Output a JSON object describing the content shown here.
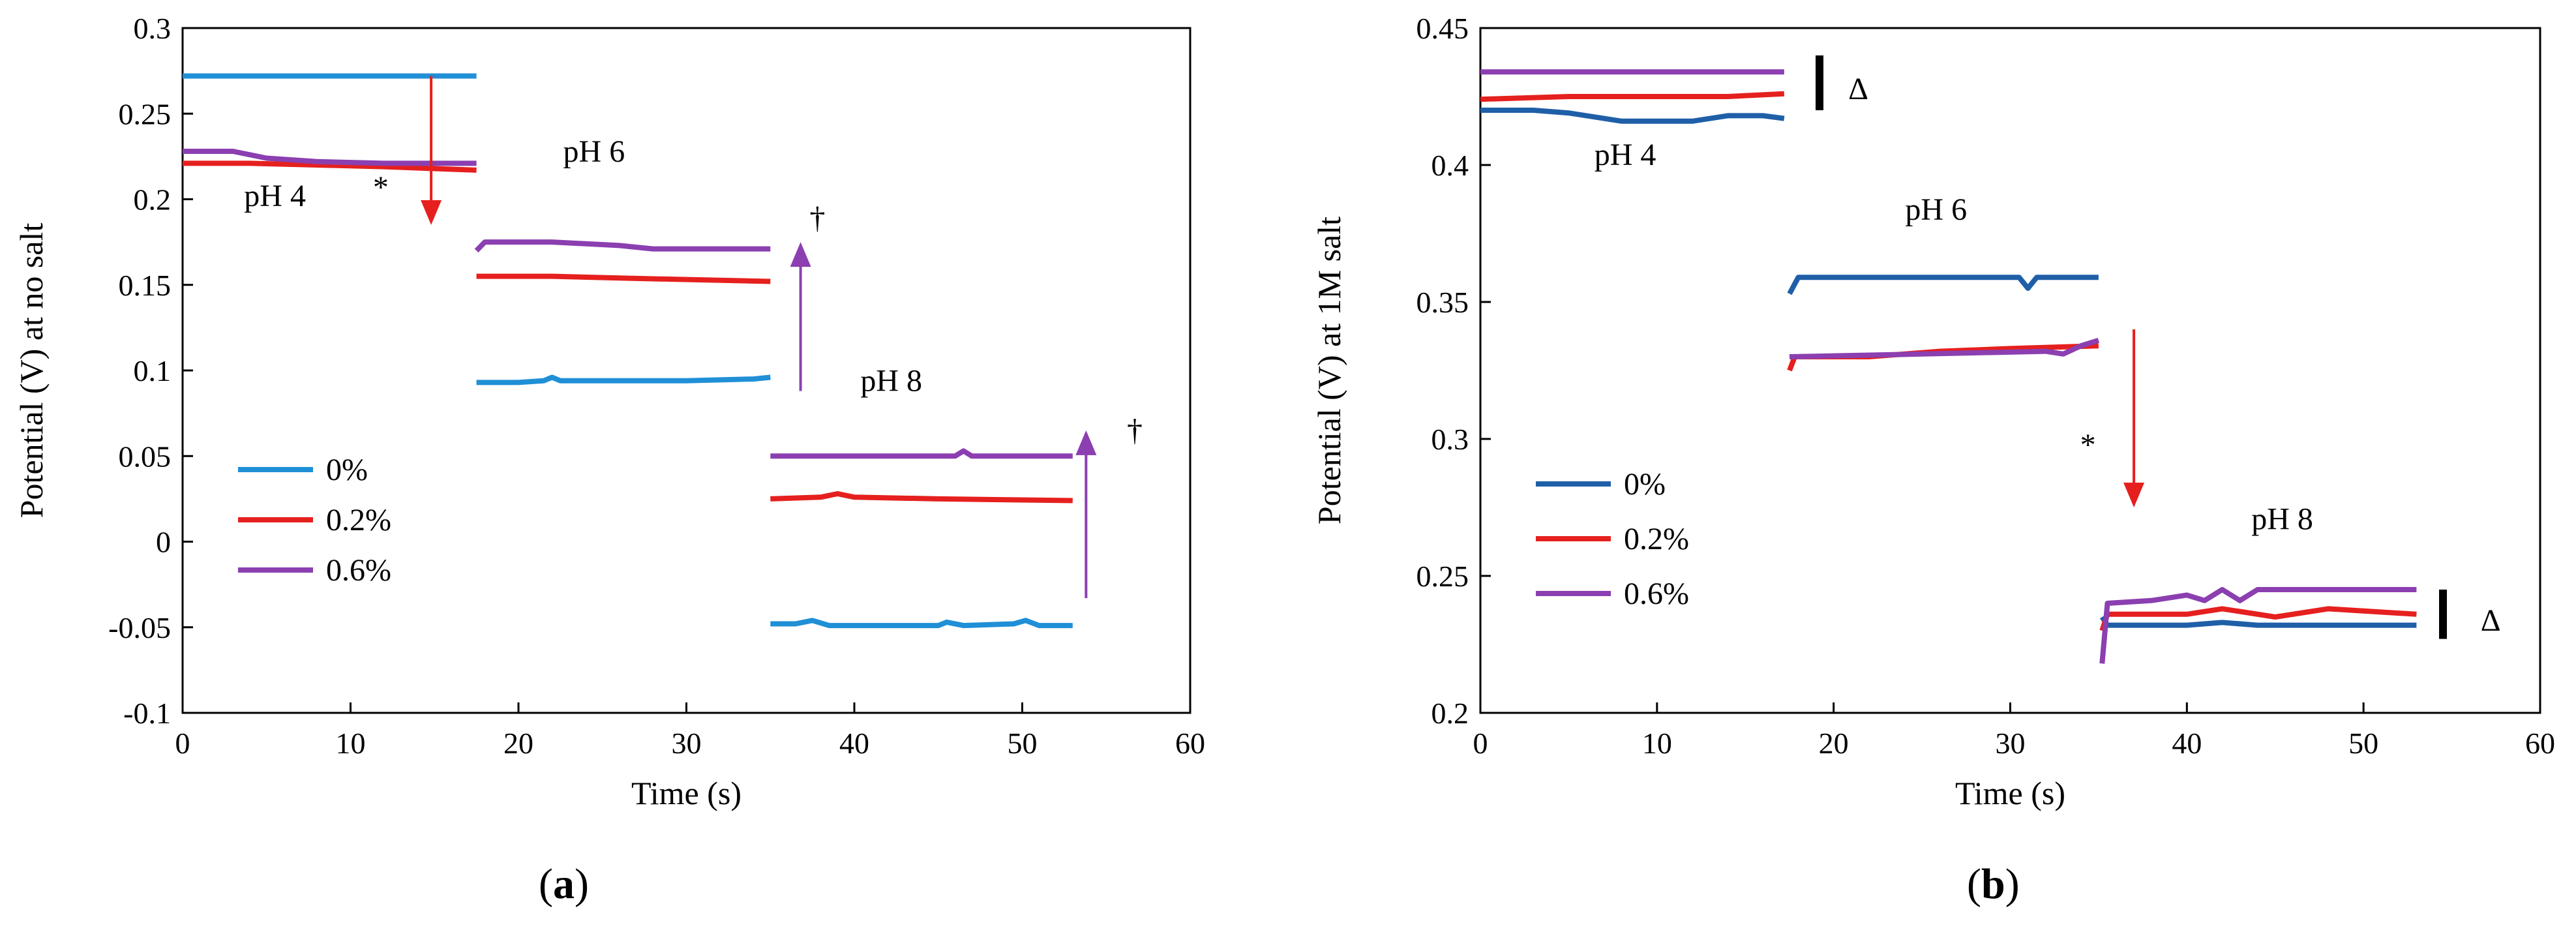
{
  "figure": {
    "panel_a_label": "a",
    "panel_b_label": "b"
  },
  "chart_data": [
    {
      "type": "line",
      "panel": "a",
      "xlabel": "Time (s)",
      "ylabel": "Potential (V) at no salt",
      "xlim": [
        0,
        60
      ],
      "ylim": [
        -0.1,
        0.3
      ],
      "xticks": [
        0,
        10,
        20,
        30,
        40,
        50,
        60
      ],
      "yticks": [
        -0.1,
        -0.05,
        0,
        0.05,
        0.1,
        0.15,
        0.2,
        0.25,
        0.3
      ],
      "ytick_labels": [
        "-0.1",
        "-0.05",
        "0",
        "0.05",
        "0.1",
        "0.15",
        "0.2",
        "0.25",
        "0.3"
      ],
      "legend_position": "lower-left",
      "series": [
        {
          "name": "0%",
          "color": "#1f8fd6",
          "segments": [
            [
              [
                0,
                0.272
              ],
              [
                17.5,
                0.272
              ]
            ],
            [
              [
                17.5,
                0.093
              ],
              [
                20,
                0.093
              ],
              [
                21.5,
                0.094
              ],
              [
                22,
                0.096
              ],
              [
                22.5,
                0.094
              ],
              [
                30,
                0.094
              ],
              [
                34,
                0.095
              ],
              [
                35,
                0.096
              ]
            ],
            [
              [
                35,
                -0.048
              ],
              [
                36.5,
                -0.048
              ],
              [
                37.5,
                -0.046
              ],
              [
                38.5,
                -0.049
              ],
              [
                45,
                -0.049
              ],
              [
                45.5,
                -0.047
              ],
              [
                46.5,
                -0.049
              ],
              [
                49.5,
                -0.048
              ],
              [
                50.2,
                -0.046
              ],
              [
                51,
                -0.049
              ],
              [
                53,
                -0.049
              ]
            ]
          ]
        },
        {
          "name": "0.2%",
          "color": "#e5201e",
          "segments": [
            [
              [
                0,
                0.221
              ],
              [
                4,
                0.221
              ],
              [
                8,
                0.22
              ],
              [
                12,
                0.219
              ],
              [
                17.5,
                0.217
              ]
            ],
            [
              [
                17.5,
                0.155
              ],
              [
                22,
                0.155
              ],
              [
                26,
                0.154
              ],
              [
                35,
                0.152
              ]
            ],
            [
              [
                35,
                0.025
              ],
              [
                38,
                0.026
              ],
              [
                39,
                0.028
              ],
              [
                40,
                0.026
              ],
              [
                45,
                0.025
              ],
              [
                53,
                0.024
              ]
            ]
          ]
        },
        {
          "name": "0.6%",
          "color": "#8b3fb0",
          "segments": [
            [
              [
                0,
                0.228
              ],
              [
                3,
                0.228
              ],
              [
                5,
                0.224
              ],
              [
                8,
                0.222
              ],
              [
                12,
                0.221
              ],
              [
                17.5,
                0.221
              ]
            ],
            [
              [
                17.5,
                0.17
              ],
              [
                18,
                0.175
              ],
              [
                22,
                0.175
              ],
              [
                26,
                0.173
              ],
              [
                28,
                0.171
              ],
              [
                35,
                0.171
              ]
            ],
            [
              [
                35,
                0.05
              ],
              [
                40,
                0.05
              ],
              [
                46,
                0.05
              ],
              [
                46.5,
                0.053
              ],
              [
                47,
                0.05
              ],
              [
                53,
                0.05
              ]
            ]
          ]
        }
      ],
      "annotations": [
        {
          "text": "pH 4",
          "x": 5.5,
          "y": 0.196
        },
        {
          "text": "*",
          "x": 11.8,
          "y": 0.201
        },
        {
          "text": "pH 6",
          "x": 24.5,
          "y": 0.222
        },
        {
          "text": "pH 8",
          "x": 42.2,
          "y": 0.088
        },
        {
          "text": "†",
          "x": 37.8,
          "y": 0.183
        },
        {
          "text": "†",
          "x": 56.7,
          "y": 0.059
        }
      ],
      "arrows": [
        {
          "color": "#e5201e",
          "x": 14.8,
          "y_from": 0.272,
          "y_to": 0.185
        },
        {
          "color": "#8b3fb0",
          "x": 36.8,
          "y_from": 0.088,
          "y_to": 0.175
        },
        {
          "color": "#8b3fb0",
          "x": 53.8,
          "y_from": -0.033,
          "y_to": 0.065
        }
      ]
    },
    {
      "type": "line",
      "panel": "b",
      "xlabel": "Time (s)",
      "ylabel": "Potential (V) at 1M salt",
      "xlim": [
        0,
        60
      ],
      "ylim": [
        0.2,
        0.45
      ],
      "xticks": [
        0,
        10,
        20,
        30,
        40,
        50,
        60
      ],
      "yticks": [
        0.2,
        0.25,
        0.3,
        0.35,
        0.4,
        0.45
      ],
      "ytick_labels": [
        "0.2",
        "0.25",
        "0.3",
        "0.35",
        "0.4",
        "0.45"
      ],
      "legend_position": "lower-left",
      "series": [
        {
          "name": "0%",
          "color": "#1f5fa8",
          "segments": [
            [
              [
                0,
                0.42
              ],
              [
                3,
                0.42
              ],
              [
                5,
                0.419
              ],
              [
                8,
                0.416
              ],
              [
                12,
                0.416
              ],
              [
                14,
                0.418
              ],
              [
                16,
                0.418
              ],
              [
                17.2,
                0.417
              ]
            ],
            [
              [
                17.5,
                0.353
              ],
              [
                18,
                0.359
              ],
              [
                30.5,
                0.359
              ],
              [
                31,
                0.355
              ],
              [
                31.5,
                0.359
              ],
              [
                35,
                0.359
              ]
            ],
            [
              [
                35.2,
                0.235
              ],
              [
                35.5,
                0.232
              ],
              [
                40,
                0.232
              ],
              [
                42,
                0.233
              ],
              [
                44,
                0.232
              ],
              [
                53,
                0.232
              ]
            ]
          ]
        },
        {
          "name": "0.2%",
          "color": "#e5201e",
          "segments": [
            [
              [
                0,
                0.424
              ],
              [
                5,
                0.425
              ],
              [
                10,
                0.425
              ],
              [
                14,
                0.425
              ],
              [
                17.2,
                0.426
              ]
            ],
            [
              [
                17.5,
                0.325
              ],
              [
                17.8,
                0.33
              ],
              [
                22,
                0.33
              ],
              [
                26,
                0.332
              ],
              [
                30,
                0.333
              ],
              [
                35,
                0.334
              ]
            ],
            [
              [
                35.2,
                0.23
              ],
              [
                35.5,
                0.236
              ],
              [
                40,
                0.236
              ],
              [
                42,
                0.238
              ],
              [
                45,
                0.235
              ],
              [
                48,
                0.238
              ],
              [
                53,
                0.236
              ]
            ]
          ]
        },
        {
          "name": "0.6%",
          "color": "#8b3fb0",
          "segments": [
            [
              [
                0,
                0.434
              ],
              [
                17.2,
                0.434
              ]
            ],
            [
              [
                17.5,
                0.33
              ],
              [
                25,
                0.331
              ],
              [
                32,
                0.332
              ],
              [
                33,
                0.331
              ],
              [
                34,
                0.334
              ],
              [
                35,
                0.336
              ]
            ],
            [
              [
                35.2,
                0.218
              ],
              [
                35.5,
                0.24
              ],
              [
                38,
                0.241
              ],
              [
                40,
                0.243
              ],
              [
                41,
                0.241
              ],
              [
                42,
                0.245
              ],
              [
                43,
                0.241
              ],
              [
                44,
                0.245
              ],
              [
                53,
                0.245
              ]
            ]
          ]
        }
      ],
      "annotations": [
        {
          "text": "pH 4",
          "x": 8.2,
          "y": 0.4
        },
        {
          "text": "pH 6",
          "x": 25.8,
          "y": 0.38
        },
        {
          "text": "pH 8",
          "x": 45.4,
          "y": 0.267
        },
        {
          "text": "*",
          "x": 34.4,
          "y": 0.294
        },
        {
          "text": "Δ",
          "x": 21.4,
          "y": 0.424
        },
        {
          "text": "Δ",
          "x": 57.2,
          "y": 0.23
        }
      ],
      "arrows": [
        {
          "color": "#e5201e",
          "x": 37,
          "y_from": 0.34,
          "y_to": 0.275
        }
      ],
      "bars": [
        {
          "x": 19.2,
          "y_from": 0.42,
          "y_to": 0.44
        },
        {
          "x": 54.5,
          "y_from": 0.227,
          "y_to": 0.245
        }
      ]
    }
  ]
}
